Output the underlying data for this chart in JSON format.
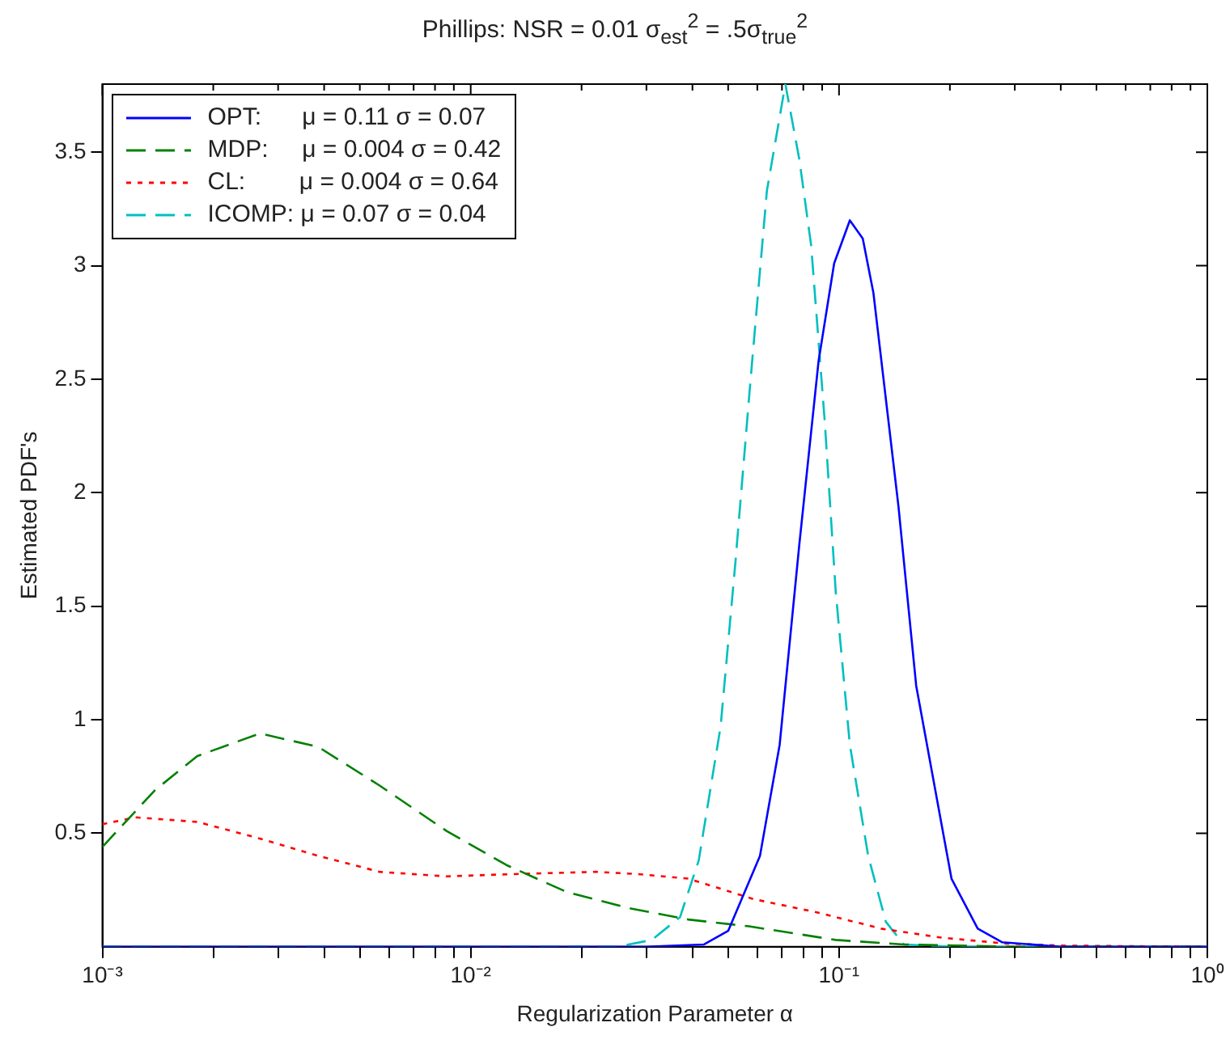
{
  "chart_data": {
    "type": "line",
    "title": "Phillips: NSR = 0.01 σ$_{est}$$^{2}$ = .5σ$_{true}$$^{2}$",
    "xlabel": "Regularization Parameter α",
    "ylabel": "Estimated PDF's",
    "log": "x",
    "xlim": [
      0.001,
      1
    ],
    "ylim": [
      0,
      3.8
    ],
    "xticks": [
      {
        "value": 0.001,
        "label": "10⁻³"
      },
      {
        "value": 0.002,
        "label": null
      },
      {
        "value": 0.003,
        "label": null
      },
      {
        "value": 0.004,
        "label": null
      },
      {
        "value": 0.005,
        "label": null
      },
      {
        "value": 0.006,
        "label": null
      },
      {
        "value": 0.007,
        "label": null
      },
      {
        "value": 0.008,
        "label": null
      },
      {
        "value": 0.009,
        "label": null
      },
      {
        "value": 0.01,
        "label": "10⁻²"
      },
      {
        "value": 0.02,
        "label": null
      },
      {
        "value": 0.03,
        "label": null
      },
      {
        "value": 0.04,
        "label": null
      },
      {
        "value": 0.05,
        "label": null
      },
      {
        "value": 0.06,
        "label": null
      },
      {
        "value": 0.07,
        "label": null
      },
      {
        "value": 0.08,
        "label": null
      },
      {
        "value": 0.09,
        "label": null
      },
      {
        "value": 0.1,
        "label": "10⁻¹"
      },
      {
        "value": 0.2,
        "label": null
      },
      {
        "value": 0.3,
        "label": null
      },
      {
        "value": 0.4,
        "label": null
      },
      {
        "value": 0.5,
        "label": null
      },
      {
        "value": 0.6,
        "label": null
      },
      {
        "value": 0.7,
        "label": null
      },
      {
        "value": 0.8,
        "label": null
      },
      {
        "value": 0.9,
        "label": null
      },
      {
        "value": 1,
        "label": "10⁰"
      }
    ],
    "yticks": [
      0.5,
      1,
      1.5,
      2,
      2.5,
      3,
      3.5
    ],
    "grid": false,
    "legend": "top left",
    "marker": "none",
    "series": [
      {
        "name": "OPT:      μ = 0.11 σ = 0.07",
        "color": "#0000ff",
        "line_style": "solid",
        "x": [
          0.001,
          0.03,
          0.043,
          0.05,
          0.061,
          0.069,
          0.078,
          0.088,
          0.097,
          0.107,
          0.116,
          0.124,
          0.145,
          0.162,
          0.202,
          0.238,
          0.277,
          0.4,
          1
        ],
        "values": [
          0,
          0,
          0.01,
          0.07,
          0.4,
          0.89,
          1.77,
          2.58,
          3.01,
          3.2,
          3.12,
          2.88,
          1.94,
          1.15,
          0.3,
          0.08,
          0.02,
          0,
          0
        ]
      },
      {
        "name": "MDP:     μ = 0.004 σ = 0.42",
        "color": "#008000",
        "line_style": "dashed",
        "x": [
          0.001,
          0.00139,
          0.00181,
          0.00268,
          0.00386,
          0.00566,
          0.0086,
          0.0125,
          0.0183,
          0.0269,
          0.039,
          0.057,
          0.098,
          0.15,
          0.3,
          1
        ],
        "values": [
          0.44,
          0.69,
          0.84,
          0.94,
          0.88,
          0.71,
          0.51,
          0.36,
          0.24,
          0.17,
          0.12,
          0.09,
          0.03,
          0.01,
          0,
          0
        ]
      },
      {
        "name": "CL:        μ = 0.004 σ = 0.64",
        "color": "#ff0000",
        "line_style": "dotted",
        "x": [
          0.001,
          0.00123,
          0.00181,
          0.00263,
          0.00386,
          0.00566,
          0.0086,
          0.013,
          0.0219,
          0.0285,
          0.039,
          0.0586,
          0.088,
          0.13,
          0.19,
          0.28,
          0.4,
          1
        ],
        "values": [
          0.54,
          0.57,
          0.55,
          0.48,
          0.4,
          0.33,
          0.31,
          0.32,
          0.33,
          0.32,
          0.3,
          0.21,
          0.15,
          0.08,
          0.04,
          0.015,
          0.005,
          0
        ]
      },
      {
        "name": "ICOMP: μ = 0.07 σ = 0.04",
        "color": "#00bfbf",
        "line_style": "dashed",
        "x": [
          0.001,
          0.025,
          0.031,
          0.037,
          0.0416,
          0.0477,
          0.0523,
          0.0574,
          0.0637,
          0.0715,
          0.078,
          0.084,
          0.0915,
          0.098,
          0.107,
          0.12,
          0.134,
          0.15,
          0.2,
          1
        ],
        "values": [
          0,
          0,
          0.03,
          0.13,
          0.38,
          0.97,
          1.69,
          2.48,
          3.33,
          3.8,
          3.47,
          3.09,
          2.31,
          1.56,
          0.89,
          0.4,
          0.11,
          0.01,
          0,
          0
        ]
      }
    ]
  }
}
